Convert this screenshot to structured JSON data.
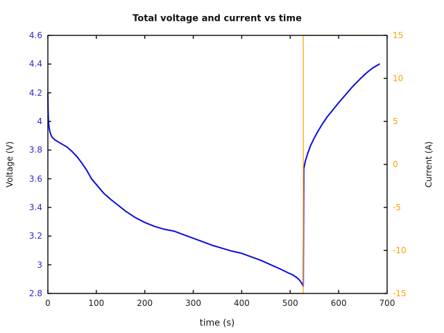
{
  "chart_data": {
    "type": "line",
    "title": "Total voltage and current vs time",
    "xlabel": "time (s)",
    "ylabel_left": "Voltage (V)",
    "ylabel_right": "Current (A)",
    "x_range": [
      0,
      700
    ],
    "y_left_range": [
      2.8,
      4.6
    ],
    "y_right_range": [
      -15,
      15
    ],
    "x_ticks": [
      0,
      100,
      200,
      300,
      400,
      500,
      600,
      700
    ],
    "y_left_ticks": [
      2.8,
      3,
      3.2,
      3.4,
      3.6,
      3.8,
      4,
      4.2,
      4.4,
      4.6
    ],
    "y_right_ticks": [
      -15,
      -10,
      -5,
      0,
      5,
      10,
      15
    ],
    "grid": false,
    "legend_position": "none",
    "colors": {
      "voltage_line": "#0b0bdf",
      "voltage_tick_labels": "#2b2bd0",
      "current_line": "#ffa200",
      "current_tick_labels": "#ffa200",
      "axis_frame": "#141414",
      "text": "#111111"
    },
    "series": [
      {
        "name": "voltage",
        "axis": "left",
        "color": "#0b0bdf",
        "width": 2,
        "points": [
          [
            0,
            4.2
          ],
          [
            0.5,
            4.08
          ],
          [
            1,
            4.02
          ],
          [
            2,
            3.97
          ],
          [
            4,
            3.93
          ],
          [
            7,
            3.9
          ],
          [
            10,
            3.885
          ],
          [
            15,
            3.87
          ],
          [
            20,
            3.86
          ],
          [
            30,
            3.84
          ],
          [
            40,
            3.82
          ],
          [
            50,
            3.79
          ],
          [
            60,
            3.755
          ],
          [
            70,
            3.71
          ],
          [
            80,
            3.66
          ],
          [
            90,
            3.6
          ],
          [
            100,
            3.56
          ],
          [
            115,
            3.5
          ],
          [
            130,
            3.455
          ],
          [
            145,
            3.415
          ],
          [
            160,
            3.375
          ],
          [
            180,
            3.33
          ],
          [
            200,
            3.295
          ],
          [
            220,
            3.268
          ],
          [
            240,
            3.248
          ],
          [
            260,
            3.235
          ],
          [
            280,
            3.21
          ],
          [
            300,
            3.185
          ],
          [
            320,
            3.16
          ],
          [
            340,
            3.135
          ],
          [
            360,
            3.115
          ],
          [
            380,
            3.095
          ],
          [
            400,
            3.08
          ],
          [
            420,
            3.055
          ],
          [
            440,
            3.03
          ],
          [
            460,
            3.0
          ],
          [
            480,
            2.97
          ],
          [
            495,
            2.945
          ],
          [
            505,
            2.93
          ],
          [
            514,
            2.91
          ],
          [
            520,
            2.89
          ],
          [
            525,
            2.865
          ],
          [
            527,
            2.85
          ],
          [
            528,
            3.67
          ],
          [
            531,
            3.72
          ],
          [
            536,
            3.775
          ],
          [
            542,
            3.83
          ],
          [
            549,
            3.88
          ],
          [
            557,
            3.93
          ],
          [
            566,
            3.98
          ],
          [
            576,
            4.03
          ],
          [
            588,
            4.08
          ],
          [
            600,
            4.13
          ],
          [
            614,
            4.185
          ],
          [
            628,
            4.24
          ],
          [
            644,
            4.295
          ],
          [
            658,
            4.34
          ],
          [
            670,
            4.372
          ],
          [
            684,
            4.4
          ]
        ]
      },
      {
        "name": "current",
        "axis": "right",
        "color": "#ffa200",
        "width": 1.2,
        "points": [
          [
            0,
            -15
          ],
          [
            527,
            -15
          ],
          [
            527,
            15
          ],
          [
            684,
            15
          ]
        ]
      }
    ]
  }
}
